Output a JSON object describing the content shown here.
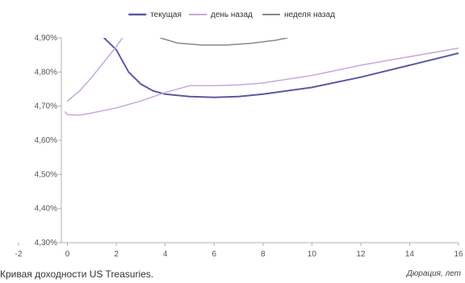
{
  "caption": "Кривая доходности US Treasuries.",
  "chart_data": {
    "type": "line",
    "xlabel": "Дюрация, лет",
    "ylabel": "",
    "xlim": [
      -2,
      16
    ],
    "ylim": [
      4.3,
      4.9
    ],
    "x_ticks": [
      -2,
      0,
      2,
      4,
      6,
      8,
      10,
      12,
      14,
      16
    ],
    "y_ticks": [
      4.3,
      4.4,
      4.5,
      4.6,
      4.7,
      4.8,
      4.9
    ],
    "y_tick_labels": [
      "4,30%",
      "4,40%",
      "4,50%",
      "4,60%",
      "4,70%",
      "4,80%",
      "4,90%"
    ],
    "grid": false,
    "legend_position": "top-center",
    "series": [
      {
        "name": "текущая",
        "color": "#5a5aa0",
        "points": [
          [
            1.5,
            4.9
          ],
          [
            2.0,
            4.865
          ],
          [
            2.5,
            4.8
          ],
          [
            3.0,
            4.765
          ],
          [
            3.5,
            4.745
          ],
          [
            4.0,
            4.735
          ],
          [
            5.0,
            4.728
          ],
          [
            6.0,
            4.726
          ],
          [
            7.0,
            4.728
          ],
          [
            8.0,
            4.735
          ],
          [
            10.0,
            4.755
          ],
          [
            12.0,
            4.785
          ],
          [
            14.0,
            4.82
          ],
          [
            16.0,
            4.855
          ]
        ]
      },
      {
        "name": "день назад",
        "color": "#c9a8d8",
        "points": [
          [
            0.0,
            4.715
          ],
          [
            0.5,
            4.745
          ],
          [
            1.0,
            4.785
          ],
          [
            1.5,
            4.83
          ],
          [
            2.0,
            4.875
          ],
          [
            2.3,
            4.905
          ]
        ]
      },
      {
        "name": "день назад",
        "color": "#c9a8d8",
        "points": [
          [
            -0.1,
            4.683
          ],
          [
            0.0,
            4.675
          ],
          [
            0.5,
            4.674
          ],
          [
            1.0,
            4.68
          ],
          [
            2.0,
            4.695
          ],
          [
            3.0,
            4.715
          ],
          [
            4.0,
            4.74
          ],
          [
            5.0,
            4.76
          ],
          [
            6.0,
            4.76
          ],
          [
            7.0,
            4.762
          ],
          [
            8.0,
            4.768
          ],
          [
            10.0,
            4.79
          ],
          [
            12.0,
            4.82
          ],
          [
            14.0,
            4.845
          ],
          [
            16.0,
            4.87
          ]
        ]
      },
      {
        "name": "неделя назад",
        "color": "#888888",
        "points": [
          [
            3.8,
            4.9
          ],
          [
            4.5,
            4.885
          ],
          [
            5.5,
            4.879
          ],
          [
            6.5,
            4.879
          ],
          [
            7.5,
            4.884
          ],
          [
            8.5,
            4.893
          ],
          [
            9.0,
            4.9
          ]
        ]
      }
    ],
    "legend": [
      {
        "label": "текущая",
        "color": "#5a5aa0"
      },
      {
        "label": "день назад",
        "color": "#c9a8d8"
      },
      {
        "label": "неделя назад",
        "color": "#888888"
      }
    ]
  }
}
